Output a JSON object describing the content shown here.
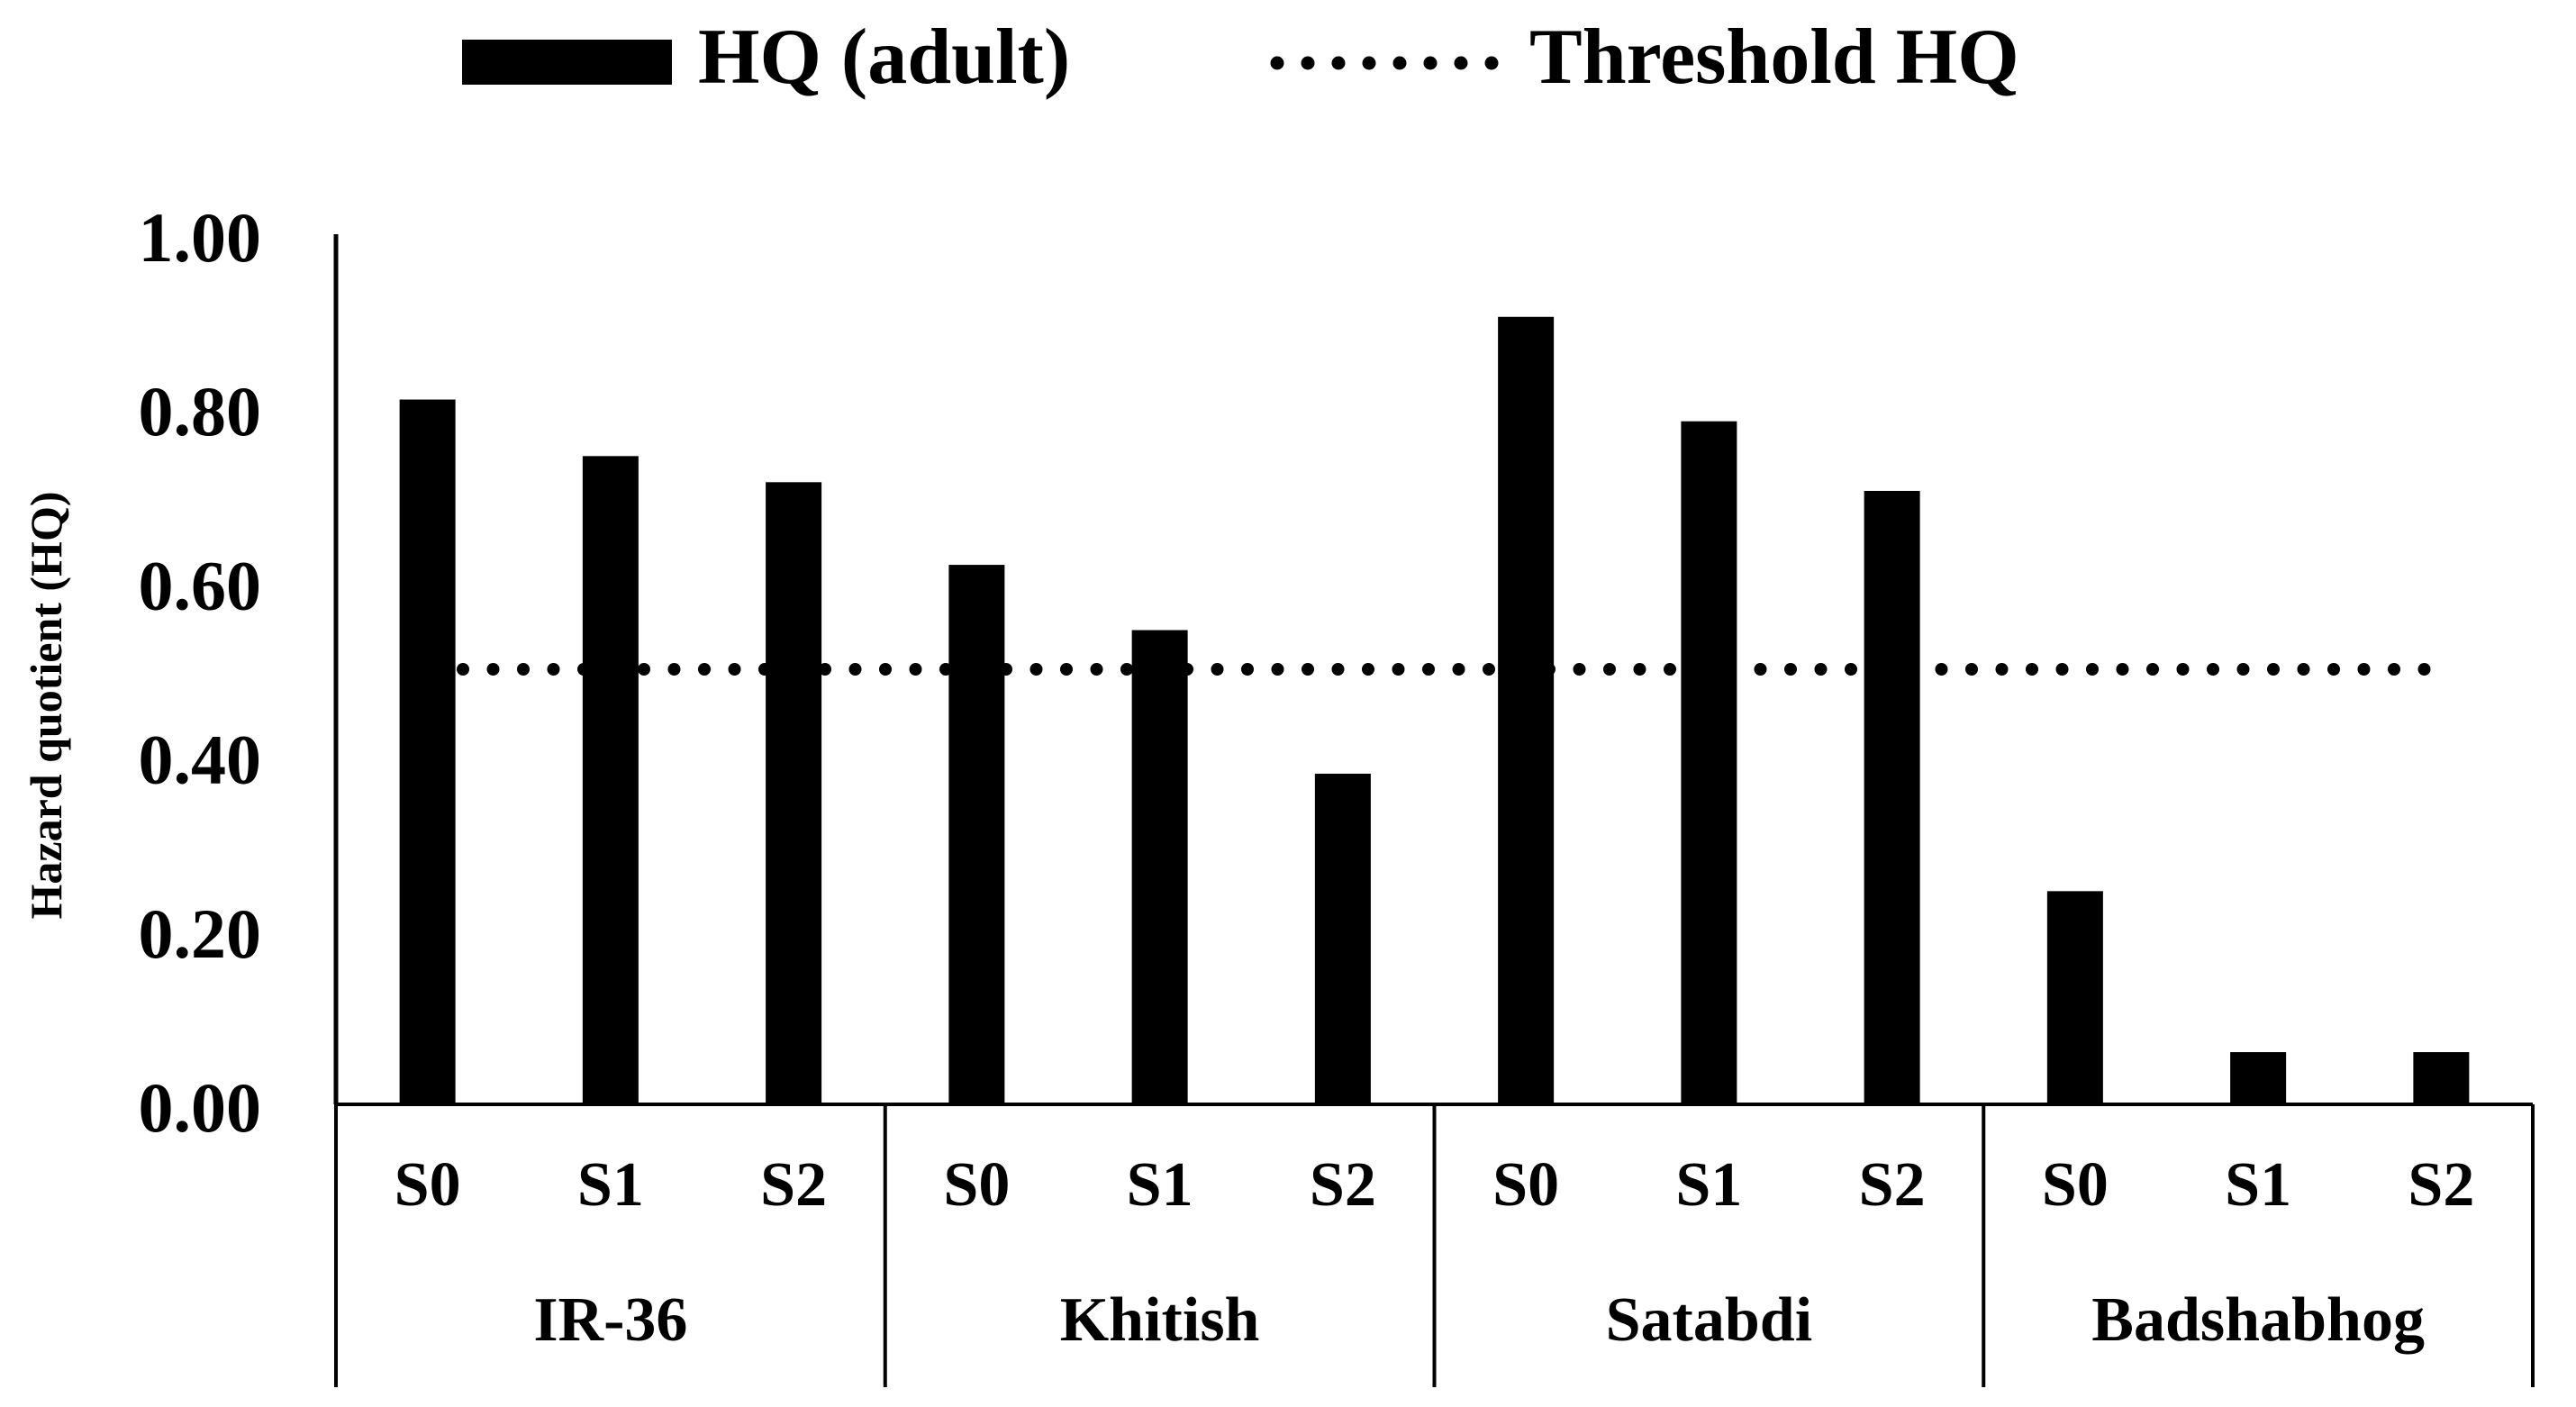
{
  "chart_data": {
    "type": "bar",
    "ylabel": "Hazard quotient (HQ)",
    "ylim": [
      0,
      1.0
    ],
    "yticks": [
      "0.00",
      "0.20",
      "0.40",
      "0.60",
      "0.80",
      "1.00"
    ],
    "ytick_values": [
      0,
      0.2,
      0.4,
      0.6,
      0.8,
      1.0
    ],
    "groups": [
      {
        "name": "IR-36",
        "categories": [
          "S0",
          "S1",
          "S2"
        ],
        "values": [
          0.81,
          0.745,
          0.715
        ]
      },
      {
        "name": "Khitish",
        "categories": [
          "S0",
          "S1",
          "S2"
        ],
        "values": [
          0.62,
          0.545,
          0.38
        ]
      },
      {
        "name": "Satabdi",
        "categories": [
          "S0",
          "S1",
          "S2"
        ],
        "values": [
          0.905,
          0.785,
          0.705
        ]
      },
      {
        "name": "Badshabhog",
        "categories": [
          "S0",
          "S1",
          "S2"
        ],
        "values": [
          0.245,
          0.06,
          0.06
        ]
      }
    ],
    "series": [
      {
        "name": "HQ (adult)",
        "kind": "bar",
        "color": "#000000"
      },
      {
        "name": "Threshold HQ",
        "kind": "dotted-line",
        "value": 0.5,
        "color": "#000000"
      }
    ],
    "legend_position": "top-center",
    "grid": false
  }
}
